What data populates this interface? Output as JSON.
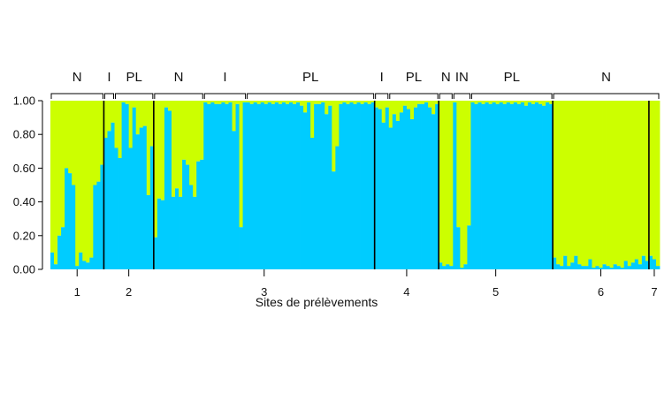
{
  "chart_data": {
    "type": "bar",
    "stacked": true,
    "xlabel": "Sites de prélèvements",
    "ylabel": "",
    "ylim": [
      0,
      1
    ],
    "yticks": [
      "0.00",
      "0.20",
      "0.40",
      "0.60",
      "0.80",
      "1.00"
    ],
    "grid": false,
    "colors": {
      "cluster_blue": "#00CCFF",
      "cluster_green": "#CCFF00",
      "separator": "#000000"
    },
    "series": [
      {
        "values_are": "blue proportion per individual (green = 1 - blue)"
      }
    ],
    "sites": [
      {
        "label": "1",
        "groups": [
          {
            "label": "N",
            "values": [
              0.1,
              0.03,
              0.2,
              0.25,
              0.6,
              0.57,
              0.5,
              0.02,
              0.1,
              0.05,
              0.04,
              0.07,
              0.5,
              0.52,
              0.62
            ]
          }
        ]
      },
      {
        "label": "2",
        "groups": [
          {
            "label": "I",
            "values": [
              0.78,
              0.82,
              0.87
            ]
          },
          {
            "label": "PL",
            "values": [
              0.72,
              0.66,
              0.99,
              0.98,
              0.72,
              0.96,
              0.8,
              0.84,
              0.85,
              0.44,
              0.73
            ]
          }
        ]
      },
      {
        "label": "3",
        "groups": [
          {
            "label": "N",
            "values": [
              0.19,
              0.42,
              0.41,
              0.96,
              0.94,
              0.43,
              0.48,
              0.43,
              0.65,
              0.62,
              0.5,
              0.43,
              0.64,
              0.65
            ]
          },
          {
            "label": "I",
            "values": [
              0.99,
              0.98,
              0.99,
              0.98,
              0.98,
              0.99,
              0.98,
              0.99,
              0.82,
              0.98,
              0.25,
              0.99
            ]
          },
          {
            "label": "PL",
            "values": [
              0.99,
              0.98,
              0.99,
              0.98,
              0.99,
              0.98,
              0.99,
              0.98,
              0.99,
              0.98,
              0.99,
              0.98,
              0.99,
              0.98,
              0.99,
              0.97,
              0.93,
              0.99,
              0.78,
              0.98,
              0.98,
              0.99,
              0.92,
              0.97,
              0.58,
              0.73,
              0.98,
              0.99,
              0.98,
              0.99,
              0.98,
              0.99,
              0.98,
              0.99,
              0.98,
              0.99
            ]
          }
        ]
      },
      {
        "label": "4",
        "groups": [
          {
            "label": "I",
            "values": [
              0.96,
              0.95,
              0.87,
              0.96
            ]
          },
          {
            "label": "PL",
            "values": [
              0.84,
              0.92,
              0.88,
              0.93,
              0.97,
              0.95,
              0.89,
              0.96,
              0.98,
              0.98,
              0.99,
              0.96,
              0.92,
              0.98
            ]
          }
        ]
      },
      {
        "label": "5",
        "groups": [
          {
            "label": "N",
            "values": [
              0.04,
              0.02,
              0.03,
              0.02
            ]
          },
          {
            "label": "IN",
            "values": [
              0.99,
              0.25,
              0.01,
              0.03,
              0.26
            ]
          },
          {
            "label": "PL",
            "values": [
              0.99,
              0.98,
              0.99,
              0.98,
              0.99,
              0.98,
              0.99,
              0.98,
              0.99,
              0.98,
              0.99,
              0.98,
              0.99,
              0.98,
              0.99,
              0.97,
              0.99,
              0.98,
              0.99,
              0.98,
              0.97,
              0.99,
              0.98
            ]
          }
        ]
      },
      {
        "label": "6",
        "groups": [
          {
            "label": "N",
            "values": [
              0.07,
              0.03,
              0.02,
              0.08,
              0.02,
              0.04,
              0.08,
              0.03,
              0.02,
              0.02,
              0.06,
              0.01,
              0.02,
              0.01,
              0.03,
              0.02,
              0.01,
              0.03,
              0.02,
              0.01,
              0.05,
              0.02,
              0.04,
              0.06,
              0.03,
              0.08,
              0.05
            ]
          }
        ]
      },
      {
        "label": "7",
        "groups": [
          {
            "label": "",
            "values": [
              0.08,
              0.06,
              0.02
            ]
          }
        ]
      }
    ],
    "top_brackets": [
      {
        "label": "N",
        "from_site": 0,
        "from_group": 0,
        "to_site": 0,
        "to_group": 0
      },
      {
        "label": "I",
        "from_site": 1,
        "from_group": 0,
        "to_site": 1,
        "to_group": 0
      },
      {
        "label": "PL",
        "from_site": 1,
        "from_group": 1,
        "to_site": 1,
        "to_group": 1
      },
      {
        "label": "N",
        "from_site": 2,
        "from_group": 0,
        "to_site": 2,
        "to_group": 0
      },
      {
        "label": "I",
        "from_site": 2,
        "from_group": 1,
        "to_site": 2,
        "to_group": 1
      },
      {
        "label": "PL",
        "from_site": 2,
        "from_group": 2,
        "to_site": 2,
        "to_group": 2
      },
      {
        "label": "I",
        "from_site": 3,
        "from_group": 0,
        "to_site": 3,
        "to_group": 0
      },
      {
        "label": "PL",
        "from_site": 3,
        "from_group": 1,
        "to_site": 3,
        "to_group": 1
      },
      {
        "label": "N",
        "from_site": 4,
        "from_group": 0,
        "to_site": 4,
        "to_group": 0
      },
      {
        "label": "IN",
        "from_site": 4,
        "from_group": 1,
        "to_site": 4,
        "to_group": 1
      },
      {
        "label": "PL",
        "from_site": 4,
        "from_group": 2,
        "to_site": 4,
        "to_group": 2
      },
      {
        "label": "N",
        "from_site": 5,
        "from_group": 0,
        "to_site": 6,
        "to_group": 0
      }
    ]
  }
}
